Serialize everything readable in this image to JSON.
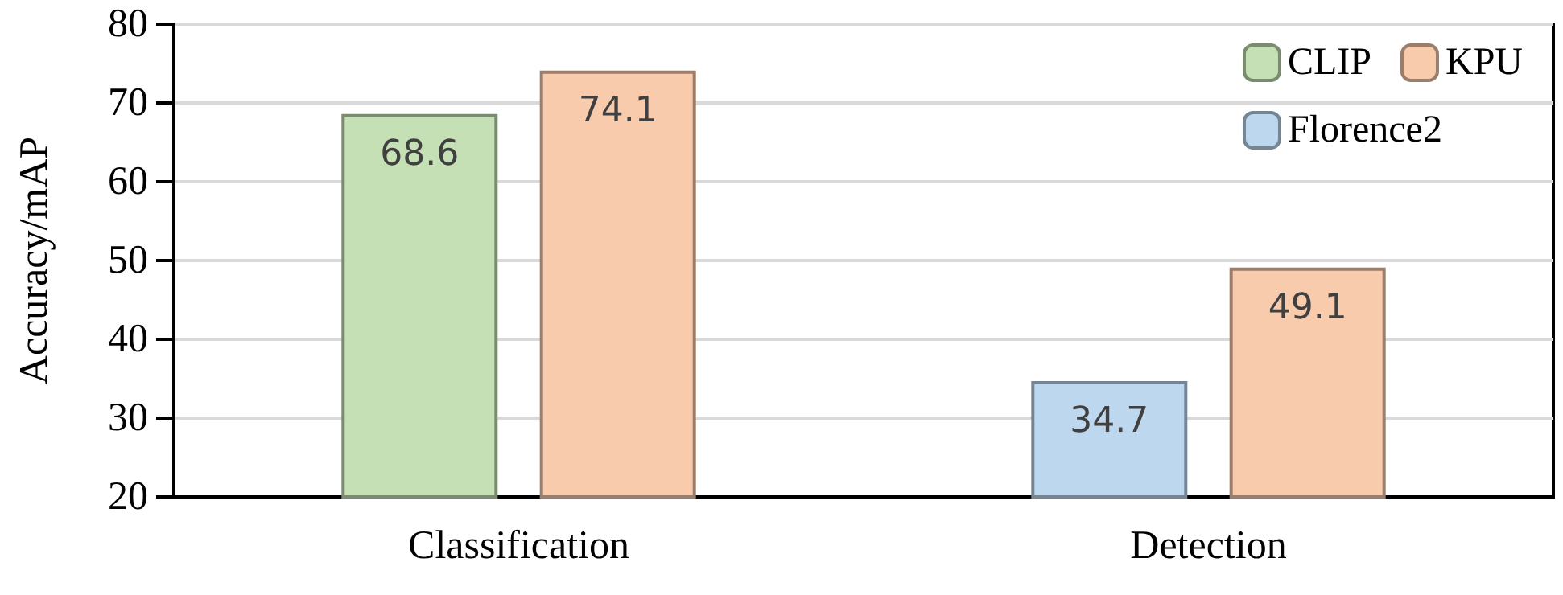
{
  "chart_data": {
    "type": "bar",
    "ylabel": "Accuracy/mAP",
    "categories": [
      "Classification",
      "Detection"
    ],
    "series": [
      {
        "name": "CLIP",
        "color": "#c5e0b4",
        "values": [
          68.6,
          null
        ]
      },
      {
        "name": "KPU",
        "color": "#f8cbad",
        "values": [
          74.1,
          49.1
        ]
      },
      {
        "name": "Florence2",
        "color": "#bdd7ee",
        "values": [
          null,
          34.7
        ]
      }
    ],
    "ylim": [
      20,
      80
    ],
    "yticks": [
      20,
      30,
      40,
      50,
      60,
      70,
      80
    ],
    "grid": "y",
    "legend": "top right",
    "data_labels": true
  }
}
